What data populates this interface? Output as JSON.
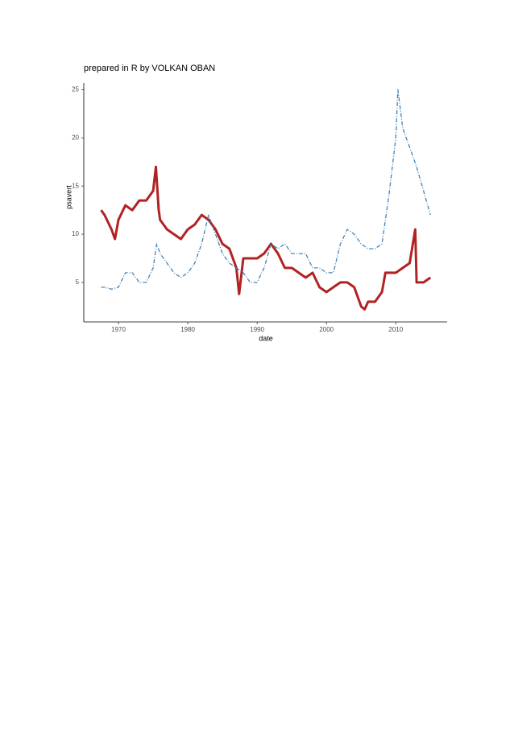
{
  "chart_data": {
    "type": "line",
    "title": "prepared in R by VOLKAN OBAN",
    "x_label": "date",
    "y_label": "psavert",
    "xlim": [
      1965,
      2017.4
    ],
    "xticks": [
      1970,
      1980,
      1990,
      2000,
      2010
    ],
    "ylim": [
      0.9,
      25.7
    ],
    "yticks": [
      5,
      10,
      15,
      20,
      25
    ],
    "grid": false,
    "series": [
      {
        "color": "#b22222",
        "line_style": "solid",
        "line_width": 3,
        "x": [
          1967.5,
          1968,
          1969,
          1969.5,
          1970,
          1971,
          1972,
          1973,
          1974,
          1975,
          1975.4,
          1975.8,
          1976,
          1977,
          1978,
          1979,
          1980,
          1981,
          1982,
          1983,
          1984,
          1985,
          1986,
          1987,
          1987.4,
          1988,
          1989,
          1990,
          1991,
          1992,
          1993,
          1994,
          1995,
          1996,
          1997,
          1998,
          1999,
          2000,
          2001,
          2002,
          2003,
          2004,
          2005,
          2005.5,
          2006,
          2007,
          2008,
          2008.5,
          2009,
          2010,
          2011,
          2012,
          2012.8,
          2013,
          2014,
          2015
        ],
        "values": [
          12.5,
          12,
          10.5,
          9.5,
          11.5,
          13,
          12.5,
          13.5,
          13.5,
          14.5,
          17,
          12.5,
          11.5,
          10.5,
          10,
          9.5,
          10.5,
          11,
          12,
          11.5,
          10.5,
          9,
          8.5,
          6.5,
          3.8,
          7.5,
          7.5,
          7.5,
          8,
          9,
          8,
          6.5,
          6.5,
          6,
          5.5,
          6,
          4.5,
          4,
          4.5,
          5,
          5,
          4.5,
          2.5,
          2.2,
          3,
          3,
          4,
          6,
          6,
          6,
          6.5,
          7,
          10.5,
          5,
          5,
          5.5
        ]
      },
      {
        "color": "#4682b4",
        "line_style": "dashed",
        "line_width": 1.3,
        "x": [
          1967.5,
          1968,
          1969,
          1970,
          1971,
          1972,
          1973,
          1974,
          1975,
          1975.5,
          1976,
          1977,
          1978,
          1979,
          1980,
          1981,
          1982,
          1983,
          1984,
          1985,
          1986,
          1987,
          1988,
          1989,
          1990,
          1991,
          1992,
          1993,
          1994,
          1995,
          1996,
          1997,
          1998,
          1999,
          2000,
          2001,
          2002,
          2003,
          2004,
          2005,
          2006,
          2007,
          2008,
          2009,
          2010,
          2010.3,
          2011,
          2012,
          2013,
          2014,
          2015
        ],
        "values": [
          4.5,
          4.5,
          4.3,
          4.5,
          6,
          6,
          5,
          5,
          6.5,
          9,
          8,
          7,
          6,
          5.5,
          6,
          7,
          9,
          12,
          10,
          8,
          7,
          6.5,
          6,
          5,
          5,
          6.5,
          9,
          8.5,
          9,
          8,
          8,
          8,
          6.5,
          6.5,
          6,
          6,
          9,
          10.5,
          10,
          9,
          8.5,
          8.5,
          9,
          14,
          20,
          25,
          21,
          19,
          17,
          14.5,
          12
        ]
      }
    ]
  }
}
